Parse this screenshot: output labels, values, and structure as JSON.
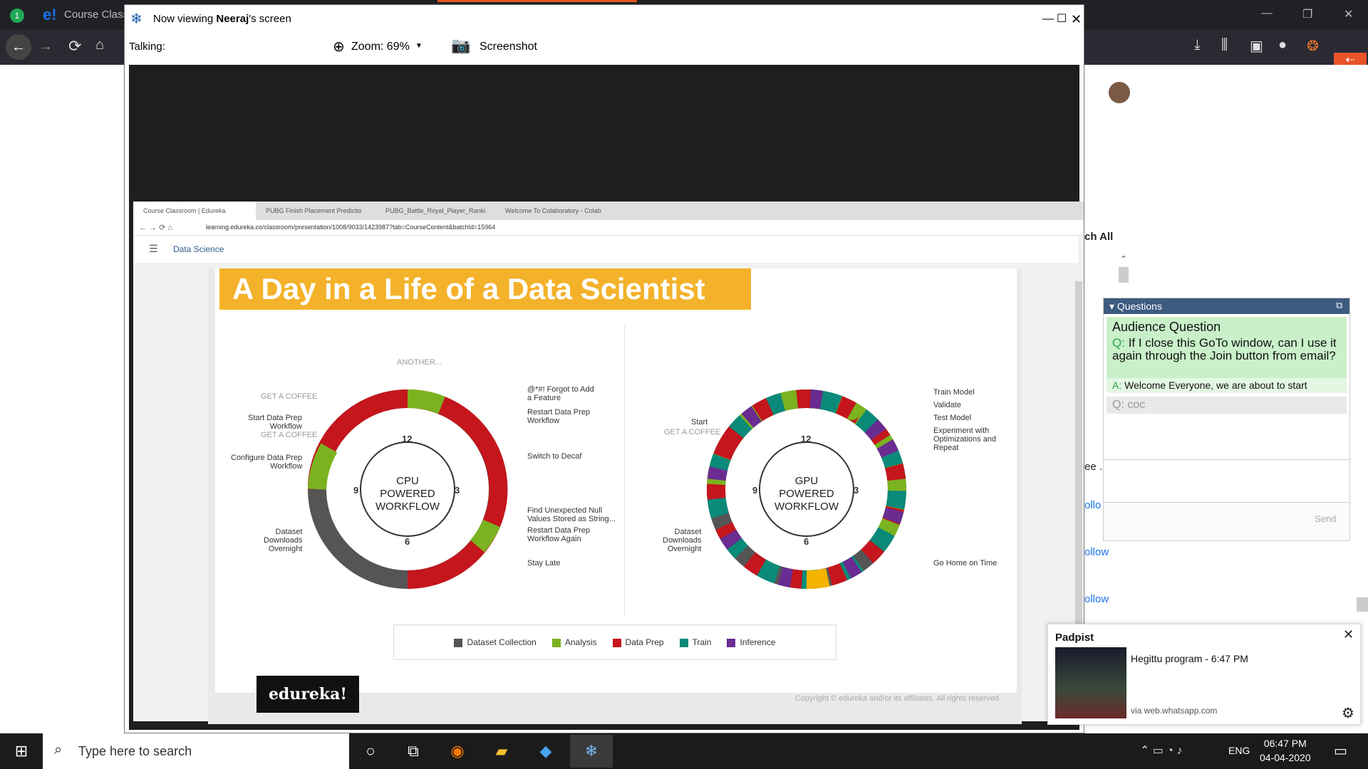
{
  "browser": {
    "tab_label": "Course Class",
    "tab_badge": "1",
    "window_controls": [
      "—",
      "❐",
      "✕"
    ]
  },
  "goto": {
    "title_prefix": "Now viewing ",
    "presenter": "Neeraj",
    "title_suffix": "'s screen",
    "talking_label": "Talking:",
    "zoom_label": "Zoom: 69%",
    "screenshot_label": "Screenshot"
  },
  "shared_browser": {
    "tabs": [
      "Course Classroom | Edureka",
      "PUBG Finish Placement Predictio",
      "PUBG_Battle_Royal_Player_Ranki",
      "Welcome To Colaboratory - Colab"
    ],
    "url": "learning.edureka.co/classroom/presentation/1008/9033/1423987?tab=CourseContent&batchId=15964",
    "page_header": "Data Science"
  },
  "slide": {
    "title": "A Day in a Life of a Data Scientist",
    "logo": "edureka!",
    "copyright": "Copyright © edureka and/or its affiliates. All rights reserved.",
    "cpu": {
      "center": [
        "CPU",
        "POWERED",
        "WORKFLOW"
      ],
      "hours": [
        "12",
        "3",
        "6",
        "9"
      ],
      "labels": {
        "another": "ANOTHER...",
        "get_coffee": "GET A COFFEE",
        "start_prep": "Start Data Prep\nWorkflow",
        "start_prep_coffee": "GET A COFFEE",
        "configure": "Configure Data Prep\nWorkflow",
        "dataset": "Dataset\nDownloads\nOvernight",
        "forgot": "@*#! Forgot to Add\na Feature",
        "restart": "Restart Data Prep\nWorkflow",
        "decaf": "Switch to Decaf",
        "null_values": "Find Unexpected Null\nValues Stored as String...",
        "restart_again": "Restart Data Prep\nWorkflow Again",
        "stay_late": "Stay Late"
      }
    },
    "gpu": {
      "center": [
        "GPU",
        "POWERED",
        "WORKFLOW"
      ],
      "hours": [
        "12",
        "3",
        "6",
        "9"
      ],
      "labels": {
        "start": "Start",
        "get_coffee": "GET A COFFEE",
        "dataset": "Dataset\nDownloads\nOvernight",
        "train_model": "Train Model",
        "validate": "Validate",
        "test_model": "Test Model",
        "experiment": "Experiment with\nOptimizations and\nRepeat",
        "go_home": "Go Home on Time"
      }
    },
    "legend": [
      {
        "label": "Dataset Collection",
        "color": "#555555"
      },
      {
        "label": "Analysis",
        "color": "#7bb21f"
      },
      {
        "label": "Data Prep",
        "color": "#c4161c"
      },
      {
        "label": "Train",
        "color": "#0b8a7a"
      },
      {
        "label": "Inference",
        "color": "#6a2c91"
      }
    ]
  },
  "chat_panel": {
    "search_label": "ch All",
    "questions_header": "Questions",
    "audience_title": "Audience Question",
    "q_prefix": "Q:",
    "question": "If I close this GoTo window, can I use it again through the Join button from email?",
    "a_prefix": "A:",
    "answer": "Welcome Everyone, we are about to start",
    "q2": "Q: coc",
    "send": "Send",
    "side_fragments": [
      "ee .",
      "ollo",
      "ollow",
      "ollow"
    ]
  },
  "notification": {
    "app": "Padpist",
    "message": "Hegittu program - 6:47 PM",
    "source": "via web.whatsapp.com"
  },
  "taskbar": {
    "search_placeholder": "Type here to search",
    "language": "ENG",
    "time": "06:47 PM",
    "date": "04-04-2020"
  }
}
